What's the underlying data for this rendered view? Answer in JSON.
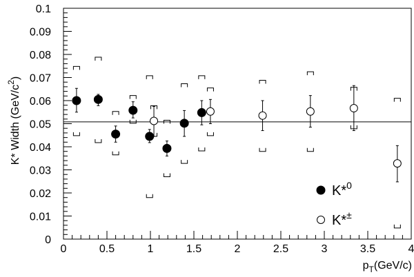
{
  "chart_data": {
    "type": "scatter",
    "xlabel": {
      "main": "p",
      "sub": "T",
      "rest": "(GeV/c)"
    },
    "ylabel": {
      "pre": "K* Width (GeV/c",
      "sup": "2",
      "post": ")"
    },
    "xlim": [
      0,
      4
    ],
    "ylim": [
      0,
      0.1
    ],
    "x_ticks": [
      "0",
      "0.5",
      "1",
      "1.5",
      "2",
      "2.5",
      "3",
      "3.5",
      "4"
    ],
    "y_ticks": [
      "0",
      "0.01",
      "0.02",
      "0.03",
      "0.04",
      "0.05",
      "0.06",
      "0.07",
      "0.08",
      "0.09",
      "0.1"
    ],
    "grid": false,
    "reference_line_y": 0.0508,
    "legend_position": "bottom-right",
    "series": [
      {
        "name": "K*0",
        "label_main": "K*",
        "label_sup": "0",
        "marker": "filled-circle",
        "points": [
          {
            "x": 0.15,
            "y": 0.06,
            "err_low": 0.055,
            "err_high": 0.0653,
            "sys_low": 0.0448,
            "sys_high": 0.0748
          },
          {
            "x": 0.4,
            "y": 0.0605,
            "err_low": 0.0578,
            "err_high": 0.0627,
            "sys_low": 0.0418,
            "sys_high": 0.0788
          },
          {
            "x": 0.6,
            "y": 0.0455,
            "err_low": 0.042,
            "err_high": 0.049,
            "sys_low": 0.0365,
            "sys_high": 0.0553
          },
          {
            "x": 0.8,
            "y": 0.0558,
            "err_low": 0.0525,
            "err_high": 0.0595,
            "sys_low": 0.0502,
            "sys_high": 0.0622
          },
          {
            "x": 0.99,
            "y": 0.0445,
            "err_low": 0.0418,
            "err_high": 0.0475,
            "sys_low": 0.018,
            "sys_high": 0.0708
          },
          {
            "x": 1.19,
            "y": 0.0393,
            "err_low": 0.036,
            "err_high": 0.0425,
            "sys_low": 0.027,
            "sys_high": 0.0515
          },
          {
            "x": 1.39,
            "y": 0.0502,
            "err_low": 0.0445,
            "err_high": 0.0557,
            "sys_low": 0.0328,
            "sys_high": 0.0673
          },
          {
            "x": 1.59,
            "y": 0.0548,
            "err_low": 0.0495,
            "err_high": 0.06,
            "sys_low": 0.0382,
            "sys_high": 0.0708
          }
        ]
      },
      {
        "name": "K*±",
        "label_main": "K*",
        "label_sup": "±",
        "marker": "open-circle",
        "points": [
          {
            "x": 1.04,
            "y": 0.0512,
            "err_low": 0.0445,
            "err_high": 0.0575,
            "sys_low": 0.0445,
            "sys_high": 0.0578
          },
          {
            "x": 1.69,
            "y": 0.0553,
            "err_low": 0.05,
            "err_high": 0.0605,
            "sys_low": 0.0448,
            "sys_high": 0.0655
          },
          {
            "x": 2.29,
            "y": 0.0535,
            "err_low": 0.047,
            "err_high": 0.06,
            "sys_low": 0.038,
            "sys_high": 0.0688
          },
          {
            "x": 2.84,
            "y": 0.0553,
            "err_low": 0.0485,
            "err_high": 0.0622,
            "sys_low": 0.038,
            "sys_high": 0.0725
          },
          {
            "x": 3.34,
            "y": 0.0567,
            "err_low": 0.047,
            "err_high": 0.0665,
            "sys_low": 0.0478,
            "sys_high": 0.0658
          },
          {
            "x": 3.84,
            "y": 0.0328,
            "err_low": 0.0248,
            "err_high": 0.0405,
            "sys_low": 0.0048,
            "sys_high": 0.061
          }
        ]
      }
    ]
  }
}
